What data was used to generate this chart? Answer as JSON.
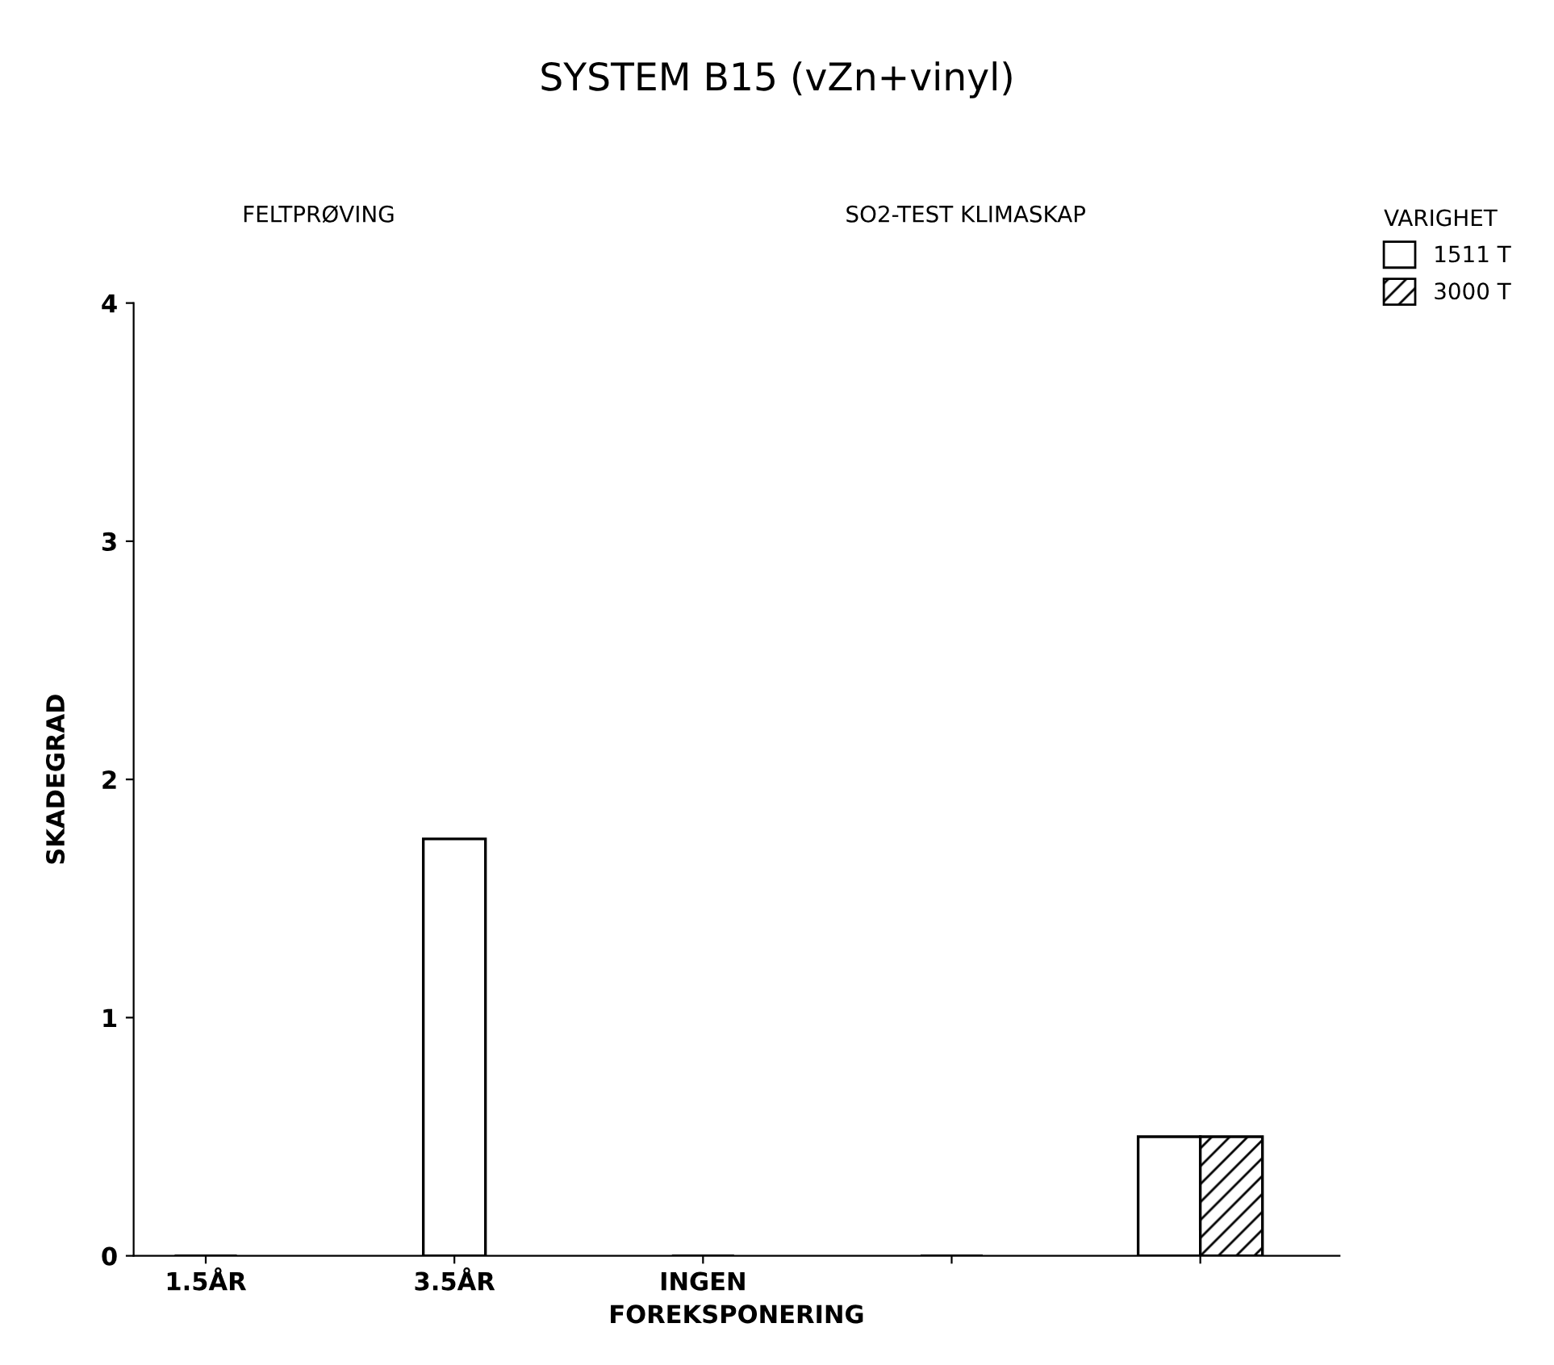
{
  "chart_data": {
    "type": "bar",
    "title": "SYSTEM B15 (vZn+vinyl)",
    "xlabel": "FOREKSPONERING",
    "ylabel": "SKADEGRAD",
    "legend_title": "VARIGHET",
    "annotations": [
      "FELTPRØVING",
      "SO2-TEST KLIMASKAP"
    ],
    "categories": [
      "1.5ÅR",
      "3.5ÅR",
      "INGEN",
      null,
      null
    ],
    "series": [
      {
        "name": "1511 T",
        "color": "#000000",
        "values": [
          0,
          1.75,
          0,
          0,
          0.5
        ]
      },
      {
        "name": "3000 T",
        "color": "#000000",
        "values": [
          null,
          null,
          null,
          null,
          0.5
        ]
      }
    ],
    "ylim": [
      0,
      4
    ],
    "yticks": [
      0,
      1,
      2,
      3,
      4
    ],
    "grid": false,
    "legend": "right"
  }
}
